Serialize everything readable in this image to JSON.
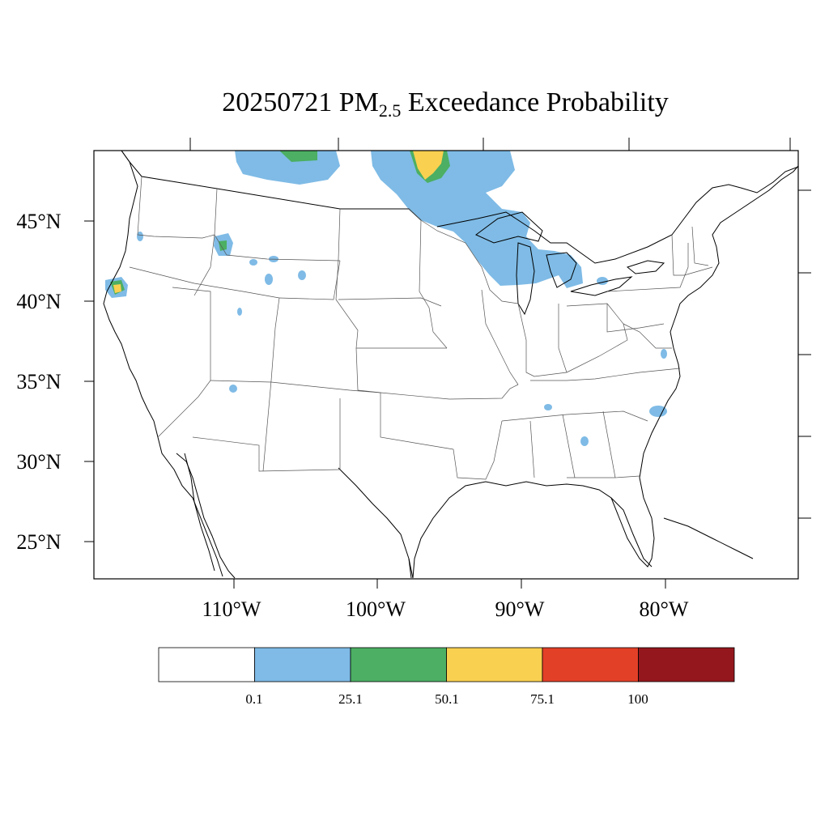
{
  "title": {
    "prefix": "20250721 PM",
    "subscript": "2.5",
    "suffix": " Exceedance Probability"
  },
  "latitude_labels": [
    "45°N",
    "40°N",
    "35°N",
    "30°N",
    "25°N"
  ],
  "longitude_labels": [
    "110°W",
    "100°W",
    "90°W",
    "80°W"
  ],
  "colorbar": {
    "colors": [
      "#ffffff",
      "#7fbbe6",
      "#4caf63",
      "#f9d050",
      "#e34028",
      "#94171d"
    ],
    "labels": [
      "0.1",
      "25.1",
      "50.1",
      "75.1",
      "100"
    ]
  },
  "legend_colors": {
    "ocean": "#ffffff",
    "land_borders": "#000000"
  }
}
